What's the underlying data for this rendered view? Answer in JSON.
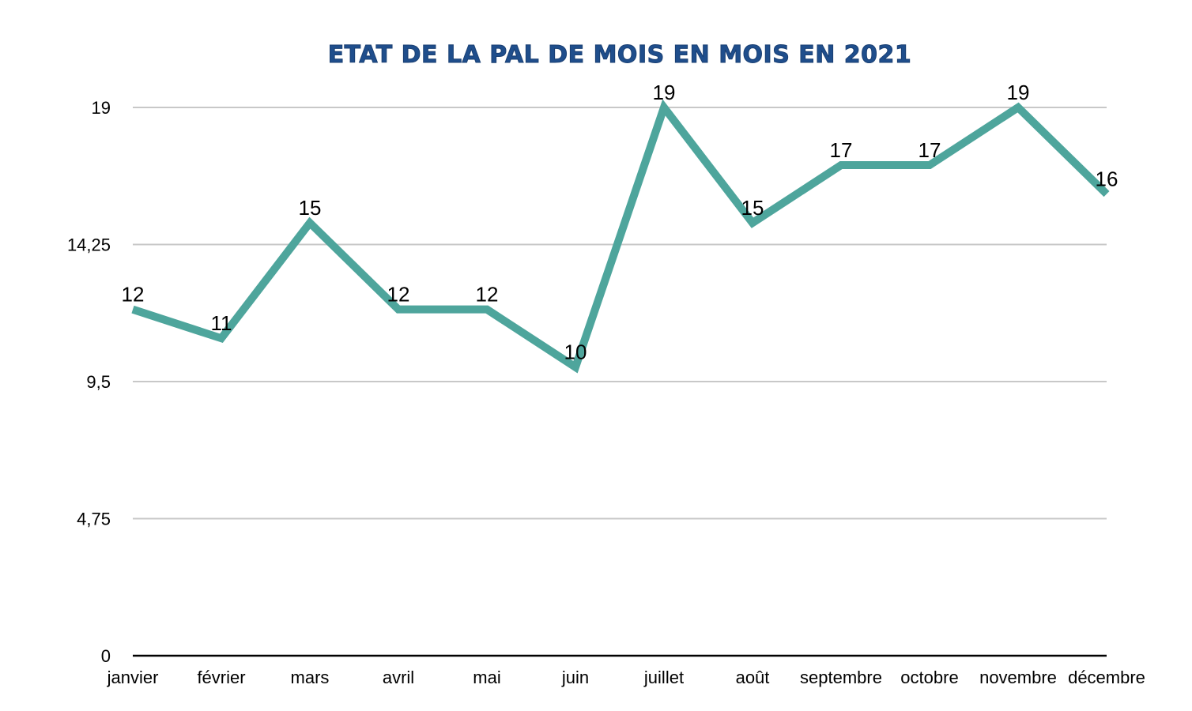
{
  "chart_data": {
    "type": "line",
    "title": "Etat de la PAL de mois en mois en 2021",
    "xlabel": "",
    "ylabel": "",
    "categories": [
      "janvier",
      "février",
      "mars",
      "avril",
      "mai",
      "juin",
      "juillet",
      "août",
      "septembre",
      "octobre",
      "novembre",
      "décembre"
    ],
    "series": [
      {
        "values": [
          12,
          11,
          15,
          12,
          12,
          10,
          19,
          15,
          17,
          17,
          19,
          16
        ]
      }
    ],
    "ylim": [
      0,
      19
    ],
    "y_ticks": [
      0,
      4.75,
      9.5,
      14.25,
      19
    ],
    "y_tick_labels": [
      "0",
      "4,75",
      "9,5",
      "14,25",
      "19"
    ],
    "grid": true,
    "data_labels": true,
    "colors": {
      "line": "#4ea59c",
      "grid": "#c8c8c8",
      "axis": "#000000",
      "title": "#1f4e8c"
    }
  }
}
